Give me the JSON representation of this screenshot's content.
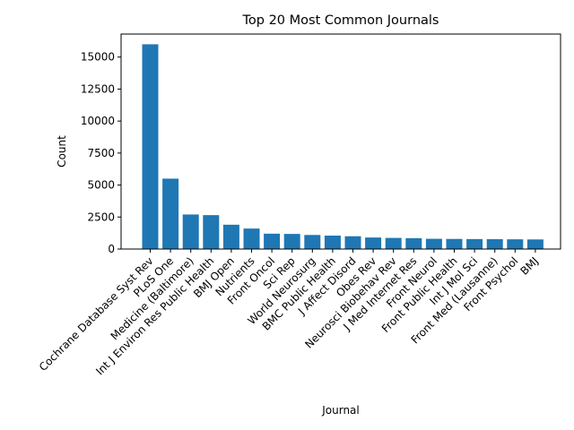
{
  "chart_data": {
    "type": "bar",
    "title": "Top 20 Most Common Journals",
    "xlabel": "Journal",
    "ylabel": "Count",
    "categories": [
      "Cochrane Database Syst Rev",
      "PLoS One",
      "Medicine (Baltimore)",
      "Int J Environ Res Public Health",
      "BMJ Open",
      "Nutrients",
      "Front Oncol",
      "Sci Rep",
      "World Neurosurg",
      "BMC Public Health",
      "J Affect Disord",
      "Obes Rev",
      "Neurosci Biobehav Rev",
      "J Med Internet Res",
      "Front Neurol",
      "Front Public Health",
      "Int J Mol Sci",
      "Front Med (Lausanne)",
      "Front Psychol",
      "BMJ"
    ],
    "values": [
      16000,
      5500,
      2700,
      2650,
      1900,
      1600,
      1200,
      1180,
      1100,
      1050,
      1000,
      900,
      870,
      850,
      800,
      790,
      780,
      770,
      760,
      750
    ],
    "ylim": [
      0,
      16800
    ],
    "yticks": [
      0,
      2500,
      5000,
      7500,
      10000,
      12500,
      15000
    ],
    "ytick_labels": [
      "0",
      "2500",
      "5000",
      "7500",
      "10000",
      "12500",
      "15000"
    ],
    "bar_color": "#1f77b4",
    "grid": false,
    "legend": "none"
  }
}
